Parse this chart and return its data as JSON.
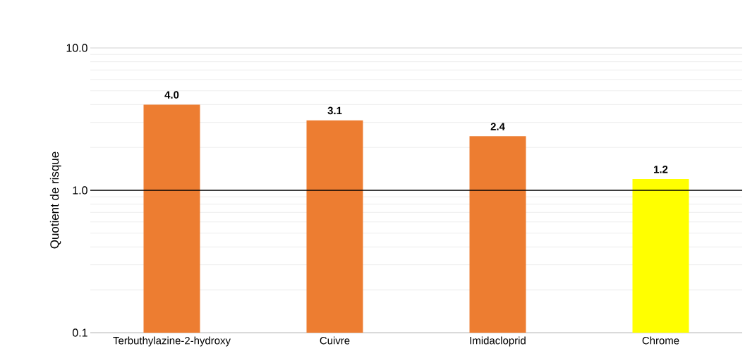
{
  "chart_data": {
    "type": "bar",
    "ylabel": "Quotient de risque",
    "categories": [
      "Terbuthylazine-2-hydroxy",
      "Cuivre",
      "Imidacloprid",
      "Chrome"
    ],
    "values": [
      4.0,
      3.1,
      2.4,
      1.2
    ],
    "value_labels": [
      "4.0",
      "3.1",
      "2.4",
      "1.2"
    ],
    "colors": [
      "#ed7d31",
      "#ed7d31",
      "#ed7d31",
      "#ffff00"
    ],
    "log": "y",
    "ylim": [
      0.1,
      10
    ],
    "yticks": [
      0.1,
      {
        "value": 1,
        "label": "1.0"
      },
      {
        "value": 10,
        "label": "10.0"
      }
    ],
    "grid": "y",
    "ref_lines": [
      {
        "axis": "y",
        "value": 1,
        "color": "#000000"
      }
    ]
  }
}
